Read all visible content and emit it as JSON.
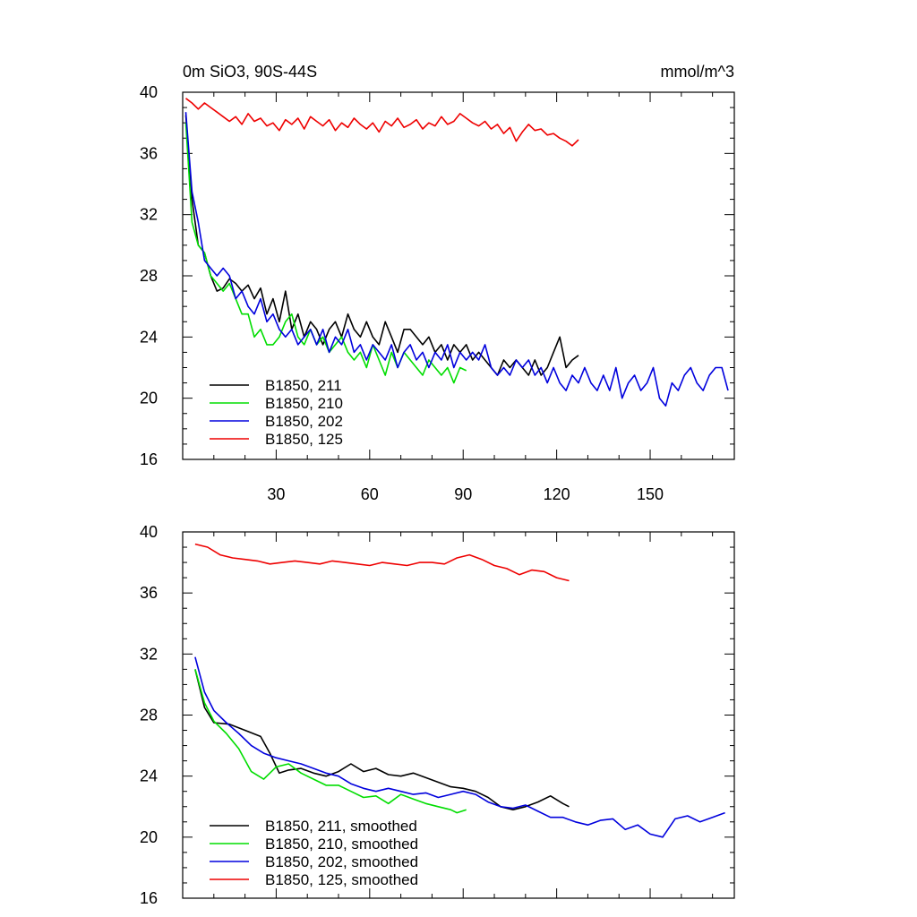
{
  "chart_data": [
    {
      "type": "line",
      "title": "0m SiO3, 90S-44S",
      "units": "mmol/m^3",
      "xlabel": "",
      "ylabel": "",
      "xlim": [
        0,
        177
      ],
      "ylim": [
        16,
        40
      ],
      "xticks": [
        30,
        60,
        90,
        120,
        150
      ],
      "yticks": [
        16,
        20,
        24,
        28,
        32,
        36,
        40
      ],
      "show_x_tick_labels": true,
      "legend_position": "bottom-left",
      "series": [
        {
          "name": "B1850, 211",
          "color": "#000000",
          "x": [
            1,
            3,
            5,
            7,
            9,
            11,
            13,
            15,
            17,
            19,
            21,
            23,
            25,
            27,
            29,
            31,
            33,
            35,
            37,
            39,
            41,
            43,
            45,
            47,
            49,
            51,
            53,
            55,
            57,
            59,
            61,
            63,
            65,
            67,
            69,
            71,
            73,
            75,
            77,
            79,
            81,
            83,
            85,
            87,
            89,
            91,
            93,
            95,
            97,
            99,
            101,
            103,
            105,
            107,
            109,
            111,
            113,
            115,
            117,
            119,
            121,
            123,
            125,
            127
          ],
          "values": [
            38.5,
            33.0,
            30.0,
            29.5,
            28.0,
            27.0,
            27.2,
            27.8,
            27.5,
            27.0,
            27.4,
            26.5,
            27.2,
            25.5,
            26.5,
            25.0,
            27.0,
            24.5,
            25.5,
            24.0,
            25.0,
            24.5,
            23.5,
            24.5,
            25.0,
            24.0,
            25.5,
            24.5,
            24.0,
            25.0,
            24.0,
            23.5,
            25.0,
            24.0,
            23.0,
            24.5,
            24.5,
            24.0,
            23.5,
            24.0,
            23.0,
            23.5,
            22.5,
            23.5,
            23.0,
            23.5,
            22.5,
            23.0,
            22.5,
            22.0,
            21.5,
            22.5,
            22.0,
            22.5,
            22.0,
            21.5,
            22.5,
            21.5,
            22.0,
            23.0,
            24.0,
            22.0,
            22.5,
            22.8
          ]
        },
        {
          "name": "B1850, 210",
          "color": "#00dd00",
          "x": [
            1,
            3,
            5,
            7,
            9,
            11,
            13,
            15,
            17,
            19,
            21,
            23,
            25,
            27,
            29,
            31,
            33,
            35,
            37,
            39,
            41,
            43,
            45,
            47,
            49,
            51,
            53,
            55,
            57,
            59,
            61,
            63,
            65,
            67,
            69,
            71,
            73,
            75,
            77,
            79,
            81,
            83,
            85,
            87,
            89,
            91
          ],
          "values": [
            38.0,
            31.5,
            30.0,
            29.5,
            28.0,
            27.5,
            27.0,
            27.5,
            26.5,
            25.5,
            25.5,
            24.0,
            24.5,
            23.5,
            23.5,
            24.0,
            25.0,
            25.5,
            24.0,
            23.5,
            24.5,
            23.5,
            24.0,
            23.0,
            23.5,
            24.0,
            23.0,
            22.5,
            23.0,
            22.0,
            23.5,
            22.5,
            21.5,
            23.0,
            22.0,
            23.0,
            22.5,
            22.0,
            21.5,
            22.5,
            22.0,
            21.5,
            22.0,
            21.0,
            22.0,
            21.8
          ]
        },
        {
          "name": "B1850, 202",
          "color": "#0000dd",
          "x": [
            1,
            3,
            5,
            7,
            9,
            11,
            13,
            15,
            17,
            19,
            21,
            23,
            25,
            27,
            29,
            31,
            33,
            35,
            37,
            39,
            41,
            43,
            45,
            47,
            49,
            51,
            53,
            55,
            57,
            59,
            61,
            63,
            65,
            67,
            69,
            71,
            73,
            75,
            77,
            79,
            81,
            83,
            85,
            87,
            89,
            91,
            93,
            95,
            97,
            99,
            101,
            103,
            105,
            107,
            109,
            111,
            113,
            115,
            117,
            119,
            121,
            123,
            125,
            127,
            129,
            131,
            133,
            135,
            137,
            139,
            141,
            143,
            145,
            147,
            149,
            151,
            153,
            155,
            157,
            159,
            161,
            163,
            165,
            167,
            169,
            171,
            173,
            175
          ],
          "values": [
            38.7,
            33.5,
            31.5,
            29.0,
            28.5,
            28.0,
            28.5,
            28.0,
            26.5,
            27.0,
            26.0,
            25.5,
            26.5,
            25.0,
            25.5,
            24.5,
            24.0,
            24.5,
            23.5,
            24.0,
            24.5,
            23.5,
            24.5,
            23.0,
            24.0,
            23.5,
            24.5,
            23.0,
            23.5,
            22.5,
            23.5,
            23.0,
            22.5,
            23.5,
            22.0,
            23.0,
            23.5,
            22.5,
            23.0,
            22.0,
            23.0,
            22.5,
            23.5,
            22.0,
            23.0,
            22.5,
            23.0,
            22.5,
            23.5,
            22.0,
            21.5,
            22.0,
            21.5,
            22.5,
            22.0,
            22.5,
            21.5,
            22.0,
            21.0,
            22.0,
            21.0,
            20.5,
            21.5,
            21.0,
            22.0,
            21.0,
            20.5,
            21.5,
            20.5,
            22.0,
            20.0,
            21.0,
            21.5,
            20.5,
            21.0,
            22.0,
            20.0,
            19.5,
            21.0,
            20.5,
            21.5,
            22.0,
            21.0,
            20.5,
            21.5,
            22.0,
            22.0,
            20.5
          ]
        },
        {
          "name": "B1850, 125",
          "color": "#ee0000",
          "x": [
            1,
            3,
            5,
            7,
            9,
            11,
            13,
            15,
            17,
            19,
            21,
            23,
            25,
            27,
            29,
            31,
            33,
            35,
            37,
            39,
            41,
            43,
            45,
            47,
            49,
            51,
            53,
            55,
            57,
            59,
            61,
            63,
            65,
            67,
            69,
            71,
            73,
            75,
            77,
            79,
            81,
            83,
            85,
            87,
            89,
            91,
            93,
            95,
            97,
            99,
            101,
            103,
            105,
            107,
            109,
            111,
            113,
            115,
            117,
            119,
            121,
            123,
            125,
            127
          ],
          "values": [
            39.6,
            39.3,
            38.9,
            39.3,
            39.0,
            38.7,
            38.4,
            38.1,
            38.4,
            37.9,
            38.6,
            38.1,
            38.3,
            37.8,
            38.0,
            37.5,
            38.2,
            37.9,
            38.3,
            37.6,
            38.4,
            38.1,
            37.8,
            38.2,
            37.5,
            38.0,
            37.7,
            38.3,
            37.9,
            37.6,
            38.0,
            37.4,
            38.1,
            37.8,
            38.3,
            37.7,
            37.9,
            38.2,
            37.6,
            38.0,
            37.8,
            38.4,
            37.9,
            38.1,
            38.6,
            38.3,
            38.0,
            37.8,
            38.1,
            37.6,
            37.9,
            37.3,
            37.7,
            36.8,
            37.4,
            37.9,
            37.5,
            37.6,
            37.2,
            37.3,
            37.0,
            36.8,
            36.5,
            36.9
          ]
        }
      ]
    },
    {
      "type": "line",
      "title": "",
      "units": "",
      "xlabel": "",
      "ylabel": "",
      "xlim": [
        0,
        177
      ],
      "ylim": [
        16,
        40
      ],
      "xticks": [
        30,
        60,
        90,
        120,
        150
      ],
      "yticks": [
        16,
        20,
        24,
        28,
        32,
        36,
        40
      ],
      "show_x_tick_labels": false,
      "legend_position": "bottom-left",
      "series": [
        {
          "name": "B1850, 211, smoothed",
          "color": "#000000",
          "x": [
            4,
            7,
            10,
            15,
            20,
            25,
            28,
            31,
            34,
            38,
            42,
            46,
            50,
            54,
            58,
            62,
            66,
            70,
            74,
            78,
            82,
            86,
            90,
            94,
            98,
            102,
            106,
            110,
            114,
            118,
            122,
            124
          ],
          "values": [
            31.0,
            28.5,
            27.5,
            27.4,
            27.0,
            26.6,
            25.5,
            24.2,
            24.4,
            24.5,
            24.2,
            24.0,
            24.3,
            24.8,
            24.3,
            24.5,
            24.1,
            24.0,
            24.2,
            23.9,
            23.6,
            23.3,
            23.2,
            23.0,
            22.6,
            22.0,
            21.8,
            22.0,
            22.3,
            22.7,
            22.2,
            22.0
          ]
        },
        {
          "name": "B1850, 210, smoothed",
          "color": "#00dd00",
          "x": [
            4,
            7,
            10,
            14,
            18,
            22,
            26,
            30,
            34,
            38,
            42,
            46,
            50,
            54,
            58,
            62,
            66,
            70,
            74,
            78,
            82,
            86,
            88,
            91
          ],
          "values": [
            31.0,
            28.8,
            27.6,
            26.8,
            25.8,
            24.3,
            23.8,
            24.6,
            24.8,
            24.2,
            23.8,
            23.4,
            23.4,
            23.0,
            22.6,
            22.7,
            22.2,
            22.8,
            22.5,
            22.2,
            22.0,
            21.8,
            21.6,
            21.8
          ]
        },
        {
          "name": "B1850, 202, smoothed",
          "color": "#0000dd",
          "x": [
            4,
            7,
            10,
            14,
            18,
            22,
            26,
            30,
            34,
            38,
            42,
            46,
            50,
            54,
            58,
            62,
            66,
            70,
            74,
            78,
            82,
            86,
            90,
            94,
            98,
            102,
            106,
            110,
            114,
            118,
            122,
            126,
            130,
            134,
            138,
            142,
            146,
            150,
            154,
            158,
            162,
            166,
            170,
            174
          ],
          "values": [
            31.8,
            29.5,
            28.3,
            27.5,
            26.8,
            26.0,
            25.5,
            25.2,
            25.0,
            24.8,
            24.5,
            24.2,
            24.0,
            23.5,
            23.2,
            23.0,
            23.2,
            23.0,
            22.8,
            22.9,
            22.6,
            22.8,
            23.0,
            22.8,
            22.3,
            22.0,
            21.9,
            22.1,
            21.7,
            21.3,
            21.3,
            21.0,
            20.8,
            21.1,
            21.2,
            20.5,
            20.8,
            20.2,
            20.0,
            21.2,
            21.4,
            21.0,
            21.3,
            21.6
          ]
        },
        {
          "name": "B1850, 125, smoothed",
          "color": "#ee0000",
          "x": [
            4,
            8,
            12,
            16,
            20,
            24,
            28,
            32,
            36,
            40,
            44,
            48,
            52,
            56,
            60,
            64,
            68,
            72,
            76,
            80,
            84,
            88,
            92,
            96,
            100,
            104,
            108,
            112,
            116,
            120,
            124
          ],
          "values": [
            39.2,
            39.0,
            38.5,
            38.3,
            38.2,
            38.1,
            37.9,
            38.0,
            38.1,
            38.0,
            37.9,
            38.1,
            38.0,
            37.9,
            37.8,
            38.0,
            37.9,
            37.8,
            38.0,
            38.0,
            37.9,
            38.3,
            38.5,
            38.2,
            37.8,
            37.6,
            37.2,
            37.5,
            37.4,
            37.0,
            36.8
          ]
        }
      ]
    }
  ]
}
